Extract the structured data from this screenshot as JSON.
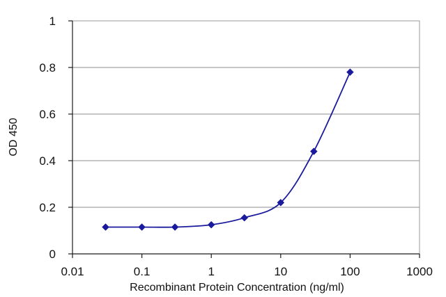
{
  "chart_data": {
    "type": "line",
    "title": "",
    "xlabel": "Recombinant Protein Concentration (ng/ml)",
    "ylabel": "OD 450",
    "x_scale": "log",
    "xlim": [
      0.01,
      1000
    ],
    "ylim": [
      0,
      1
    ],
    "x_ticks": [
      0.01,
      0.1,
      1,
      10,
      100,
      1000
    ],
    "x_tick_labels": [
      "0.01",
      "0.1",
      "1",
      "10",
      "100",
      "1000"
    ],
    "y_ticks": [
      0,
      0.2,
      0.4,
      0.6,
      0.8,
      1
    ],
    "y_tick_labels": [
      "0",
      "0.2",
      "0.4",
      "0.6",
      "0.8",
      "1"
    ],
    "grid": "horizontal",
    "legend": "none",
    "series": [
      {
        "color": "#1a1a9c",
        "marker": "diamond",
        "x": [
          0.03,
          0.1,
          0.3,
          1,
          3,
          10,
          30,
          100
        ],
        "y": [
          0.115,
          0.115,
          0.115,
          0.125,
          0.155,
          0.22,
          0.44,
          0.78
        ]
      }
    ]
  }
}
